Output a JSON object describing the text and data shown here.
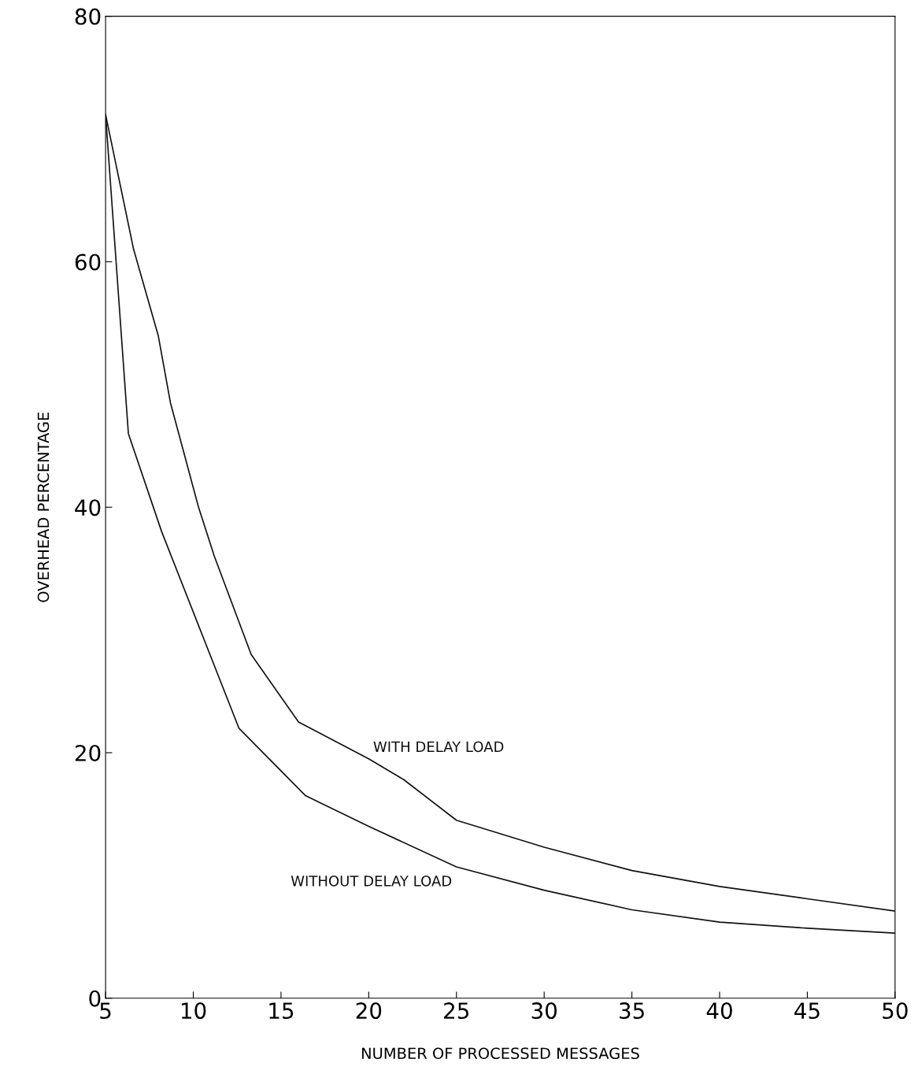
{
  "chart_data": {
    "type": "line",
    "xlabel": "NUMBER OF PROCESSED MESSAGES",
    "ylabel": "OVERHEAD PERCENTAGE",
    "xlim": [
      5,
      50
    ],
    "ylim": [
      0,
      80
    ],
    "xticks": [
      5,
      10,
      15,
      20,
      25,
      30,
      35,
      40,
      45,
      50
    ],
    "yticks": [
      0,
      20,
      40,
      60,
      80
    ],
    "grid": false,
    "legend": false,
    "marker": "none",
    "line_style": "solid",
    "series": [
      {
        "name": "WITH DELAY LOAD",
        "color": "#111111",
        "x": [
          5,
          6.6,
          7.4,
          8,
          8.7,
          10.3,
          11.2,
          13.3,
          16,
          20,
          22,
          25,
          30,
          35,
          40,
          45,
          50
        ],
        "values": [
          72,
          61,
          57,
          54,
          48.5,
          40,
          36,
          28,
          22.5,
          19.5,
          17.8,
          14.5,
          12.3,
          10.4,
          9.1,
          8.1,
          7.1
        ]
      },
      {
        "name": "WITHOUT DELAY LOAD",
        "color": "#111111",
        "x": [
          5,
          6.3,
          8.2,
          12.6,
          16.4,
          20,
          25,
          30,
          35,
          40,
          45,
          50
        ],
        "values": [
          72,
          46,
          38,
          22,
          16.5,
          14,
          10.7,
          8.8,
          7.2,
          6.2,
          5.7,
          5.3
        ]
      }
    ]
  }
}
